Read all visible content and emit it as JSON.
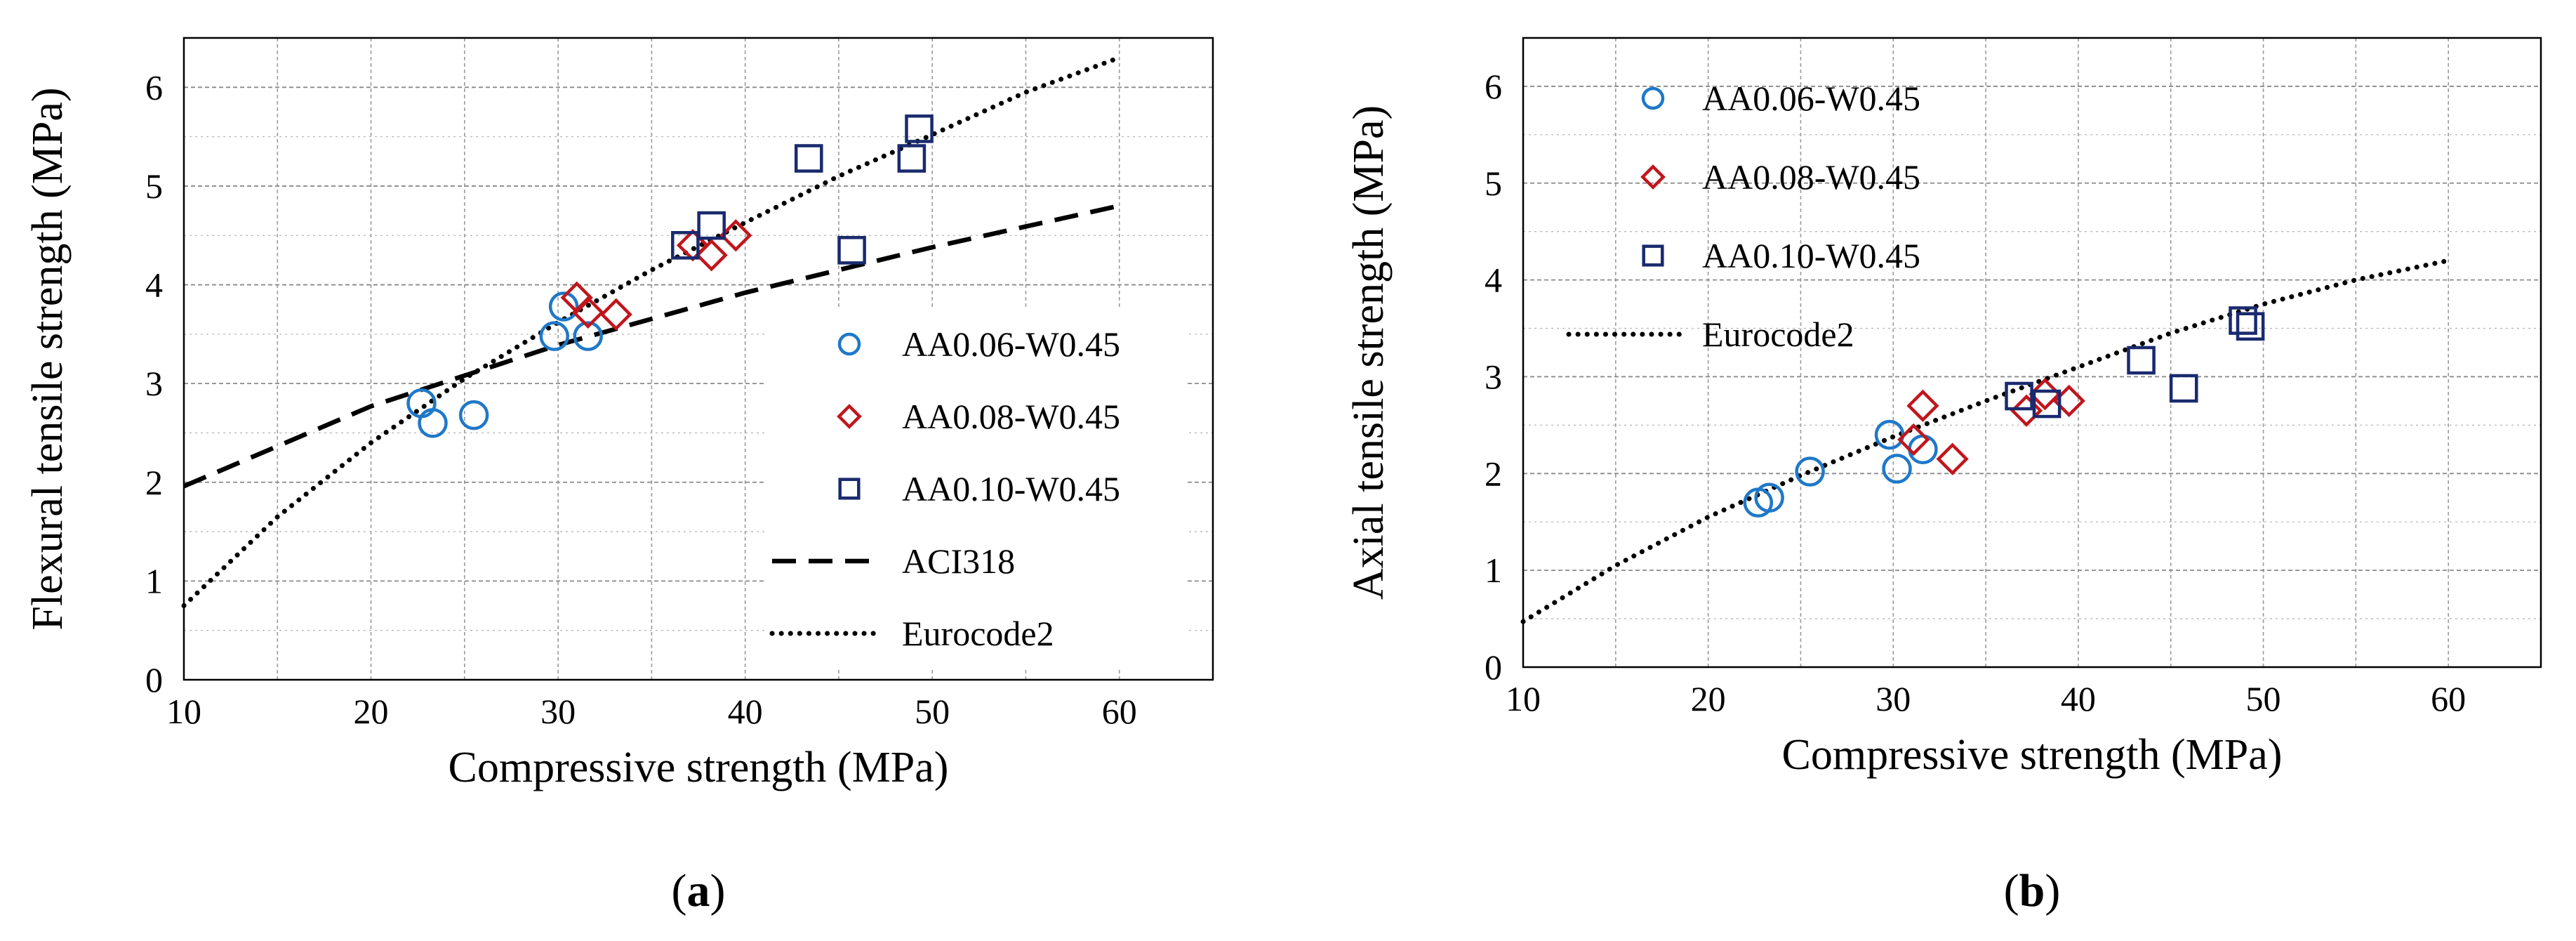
{
  "chart_data": [
    {
      "type": "scatter",
      "panel_label": "a",
      "xlabel": "Compressive strength (MPa)",
      "ylabel": "Flexural tensile strength (MPa)",
      "xlim": [
        10,
        65
      ],
      "ylim": [
        0,
        6.5
      ],
      "xticks": [
        "10",
        "20",
        "30",
        "40",
        "50",
        "60"
      ],
      "yticks": [
        "0",
        "1",
        "2",
        "3",
        "4",
        "5",
        "6"
      ],
      "grid": true,
      "legend_position": "right",
      "series": [
        {
          "name": "AA0.06-W0.45",
          "marker": "circle",
          "color": "#1f78c8",
          "points": [
            [
              22.7,
              2.8
            ],
            [
              23.3,
              2.6
            ],
            [
              25.5,
              2.68
            ],
            [
              29.8,
              3.48
            ],
            [
              30.3,
              3.78
            ],
            [
              31.6,
              3.48
            ]
          ]
        },
        {
          "name": "AA0.08-W0.45",
          "marker": "diamond",
          "color": "#c0161c",
          "points": [
            [
              31.0,
              3.87
            ],
            [
              31.6,
              3.72
            ],
            [
              33.1,
              3.7
            ],
            [
              37.2,
              4.4
            ],
            [
              38.2,
              4.3
            ],
            [
              39.5,
              4.5
            ]
          ]
        },
        {
          "name": "AA0.10-W0.45",
          "marker": "square",
          "color": "#1a2a6e",
          "points": [
            [
              36.8,
              4.4
            ],
            [
              38.2,
              4.6
            ],
            [
              43.4,
              5.28
            ],
            [
              45.7,
              4.35
            ],
            [
              48.9,
              5.28
            ],
            [
              49.3,
              5.58
            ]
          ]
        },
        {
          "name": "ACI318",
          "line": "dashed",
          "color": "#000000",
          "points": [
            [
              10,
              1.96
            ],
            [
              20,
              2.77
            ],
            [
              30,
              3.39
            ],
            [
              40,
              3.92
            ],
            [
              50,
              4.38
            ],
            [
              60,
              4.8
            ]
          ]
        },
        {
          "name": "Eurocode2",
          "line": "dotted",
          "color": "#000000",
          "points": [
            [
              10,
              0.75
            ],
            [
              15,
              1.65
            ],
            [
              20,
              2.4
            ],
            [
              25,
              3.05
            ],
            [
              30,
              3.62
            ],
            [
              35,
              4.15
            ],
            [
              40,
              4.63
            ],
            [
              45,
              5.1
            ],
            [
              50,
              5.52
            ],
            [
              55,
              5.95
            ],
            [
              60,
              6.3
            ]
          ]
        }
      ]
    },
    {
      "type": "scatter",
      "panel_label": "b",
      "xlabel": "Compressive strength (MPa)",
      "ylabel": "Axial tensile strength (MPa)",
      "xlim": [
        10,
        65
      ],
      "ylim": [
        0,
        6.5
      ],
      "xticks": [
        "10",
        "20",
        "30",
        "40",
        "50",
        "60"
      ],
      "yticks": [
        "0",
        "1",
        "2",
        "3",
        "4",
        "5",
        "6"
      ],
      "grid": true,
      "legend_position": "top-left",
      "series": [
        {
          "name": "AA0.06-W0.45",
          "marker": "circle",
          "color": "#1f78c8",
          "points": [
            [
              22.7,
              1.7
            ],
            [
              23.3,
              1.75
            ],
            [
              25.5,
              2.02
            ],
            [
              29.8,
              2.4
            ],
            [
              30.2,
              2.05
            ],
            [
              31.6,
              2.25
            ]
          ]
        },
        {
          "name": "AA0.08-W0.45",
          "marker": "diamond",
          "color": "#c0161c",
          "points": [
            [
              31.1,
              2.35
            ],
            [
              31.6,
              2.7
            ],
            [
              33.2,
              2.15
            ],
            [
              37.2,
              2.65
            ],
            [
              38.2,
              2.82
            ],
            [
              39.5,
              2.75
            ]
          ]
        },
        {
          "name": "AA0.10-W0.45",
          "marker": "square",
          "color": "#1a2a6e",
          "points": [
            [
              36.8,
              2.8
            ],
            [
              38.3,
              2.72
            ],
            [
              43.4,
              3.17
            ],
            [
              45.7,
              2.88
            ],
            [
              48.9,
              3.58
            ],
            [
              49.3,
              3.52
            ]
          ]
        },
        {
          "name": "Eurocode2",
          "line": "dotted",
          "color": "#000000",
          "points": [
            [
              10,
              0.47
            ],
            [
              15,
              1.05
            ],
            [
              20,
              1.55
            ],
            [
              25,
              1.98
            ],
            [
              30,
              2.38
            ],
            [
              35,
              2.75
            ],
            [
              40,
              3.1
            ],
            [
              45,
              3.45
            ],
            [
              50,
              3.75
            ],
            [
              55,
              4.0
            ],
            [
              60,
              4.2
            ]
          ]
        }
      ]
    }
  ]
}
